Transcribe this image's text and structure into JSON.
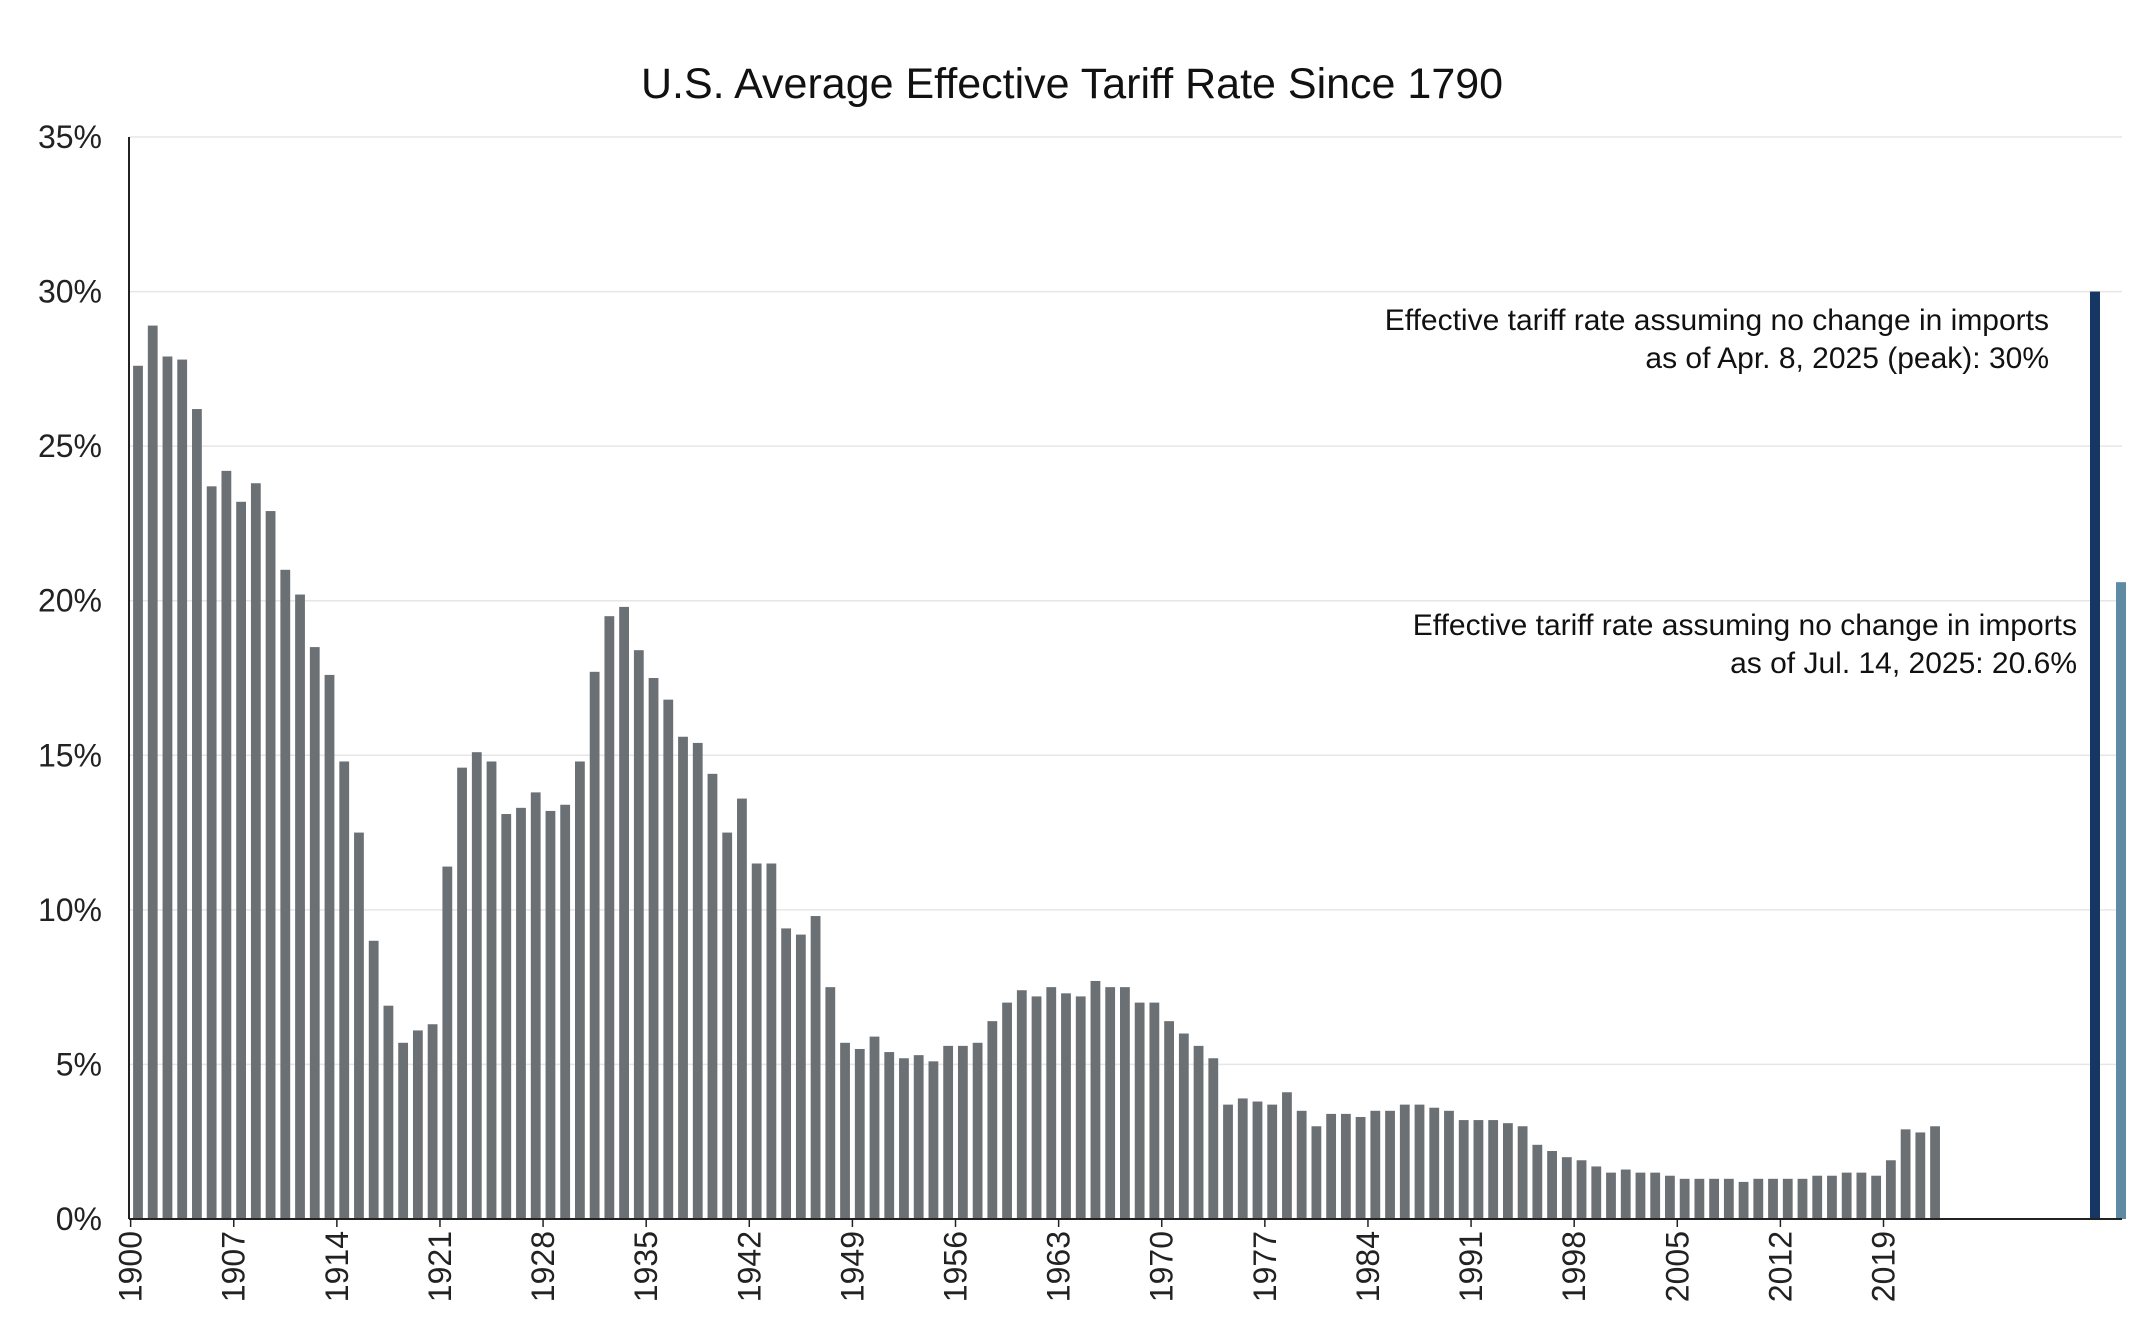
{
  "chart_data": {
    "type": "bar",
    "title": "U.S. Average Effective Tariff Rate Since 1790",
    "xlabel": "",
    "ylabel": "",
    "ylim": [
      0,
      35
    ],
    "y_ticks": [
      {
        "value": 0,
        "label": "0%"
      },
      {
        "value": 5,
        "label": "5%"
      },
      {
        "value": 10,
        "label": "10%"
      },
      {
        "value": 15,
        "label": "15%"
      },
      {
        "value": 20,
        "label": "20%"
      },
      {
        "value": 25,
        "label": "25%"
      },
      {
        "value": 30,
        "label": "30%"
      },
      {
        "value": 35,
        "label": "35%"
      }
    ],
    "x_tick_labels": [
      "1900",
      "1907",
      "1914",
      "1921",
      "1928",
      "1935",
      "1942",
      "1949",
      "1956",
      "1963",
      "1970",
      "1977",
      "1984",
      "1991",
      "1998",
      "2005",
      "2012",
      "2019"
    ],
    "grid": true,
    "start_year": 1900,
    "series": [
      {
        "name": "Average effective tariff rate",
        "color": "#6b7075",
        "values": [
          27.6,
          28.9,
          27.9,
          27.8,
          26.2,
          23.7,
          24.2,
          23.2,
          23.8,
          22.9,
          21.0,
          20.2,
          18.5,
          17.6,
          14.8,
          12.5,
          9.0,
          6.9,
          5.7,
          6.1,
          6.3,
          11.4,
          14.6,
          15.1,
          14.8,
          13.1,
          13.3,
          13.8,
          13.2,
          13.4,
          14.8,
          17.7,
          19.5,
          19.8,
          18.4,
          17.5,
          16.8,
          15.6,
          15.4,
          14.4,
          12.5,
          13.6,
          11.5,
          11.5,
          9.4,
          9.2,
          9.8,
          7.5,
          5.7,
          5.5,
          5.9,
          5.4,
          5.2,
          5.3,
          5.1,
          5.6,
          5.6,
          5.7,
          6.4,
          7.0,
          7.4,
          7.2,
          7.5,
          7.3,
          7.2,
          7.7,
          7.5,
          7.5,
          7.0,
          7.0,
          6.4,
          6.0,
          5.6,
          5.2,
          3.7,
          3.9,
          3.8,
          3.7,
          4.1,
          3.5,
          3.0,
          3.4,
          3.4,
          3.3,
          3.5,
          3.5,
          3.7,
          3.7,
          3.6,
          3.5,
          3.2,
          3.2,
          3.2,
          3.1,
          3.0,
          2.4,
          2.2,
          2.0,
          1.9,
          1.7,
          1.5,
          1.6,
          1.5,
          1.5,
          1.4,
          1.3,
          1.3,
          1.3,
          1.3,
          1.2,
          1.3,
          1.3,
          1.3,
          1.3,
          1.4,
          1.4,
          1.5,
          1.5,
          1.4,
          1.9,
          2.9,
          2.8,
          3.0
        ]
      }
    ],
    "highlight_bars": [
      {
        "name": "Apr. 8, 2025 (peak)",
        "value": 30,
        "color": "#163763"
      },
      {
        "name": "Jul. 14, 2025",
        "value": 20.6,
        "color": "#5e8ba3"
      }
    ],
    "annotations": [
      {
        "line1": "Effective tariff rate assuming no change in imports",
        "line2": "as of  Apr. 8, 2025 (peak): 30%"
      },
      {
        "line1": "Effective tariff rate assuming no change in imports",
        "line2": "as of  Jul. 14, 2025: 20.6%"
      }
    ]
  }
}
